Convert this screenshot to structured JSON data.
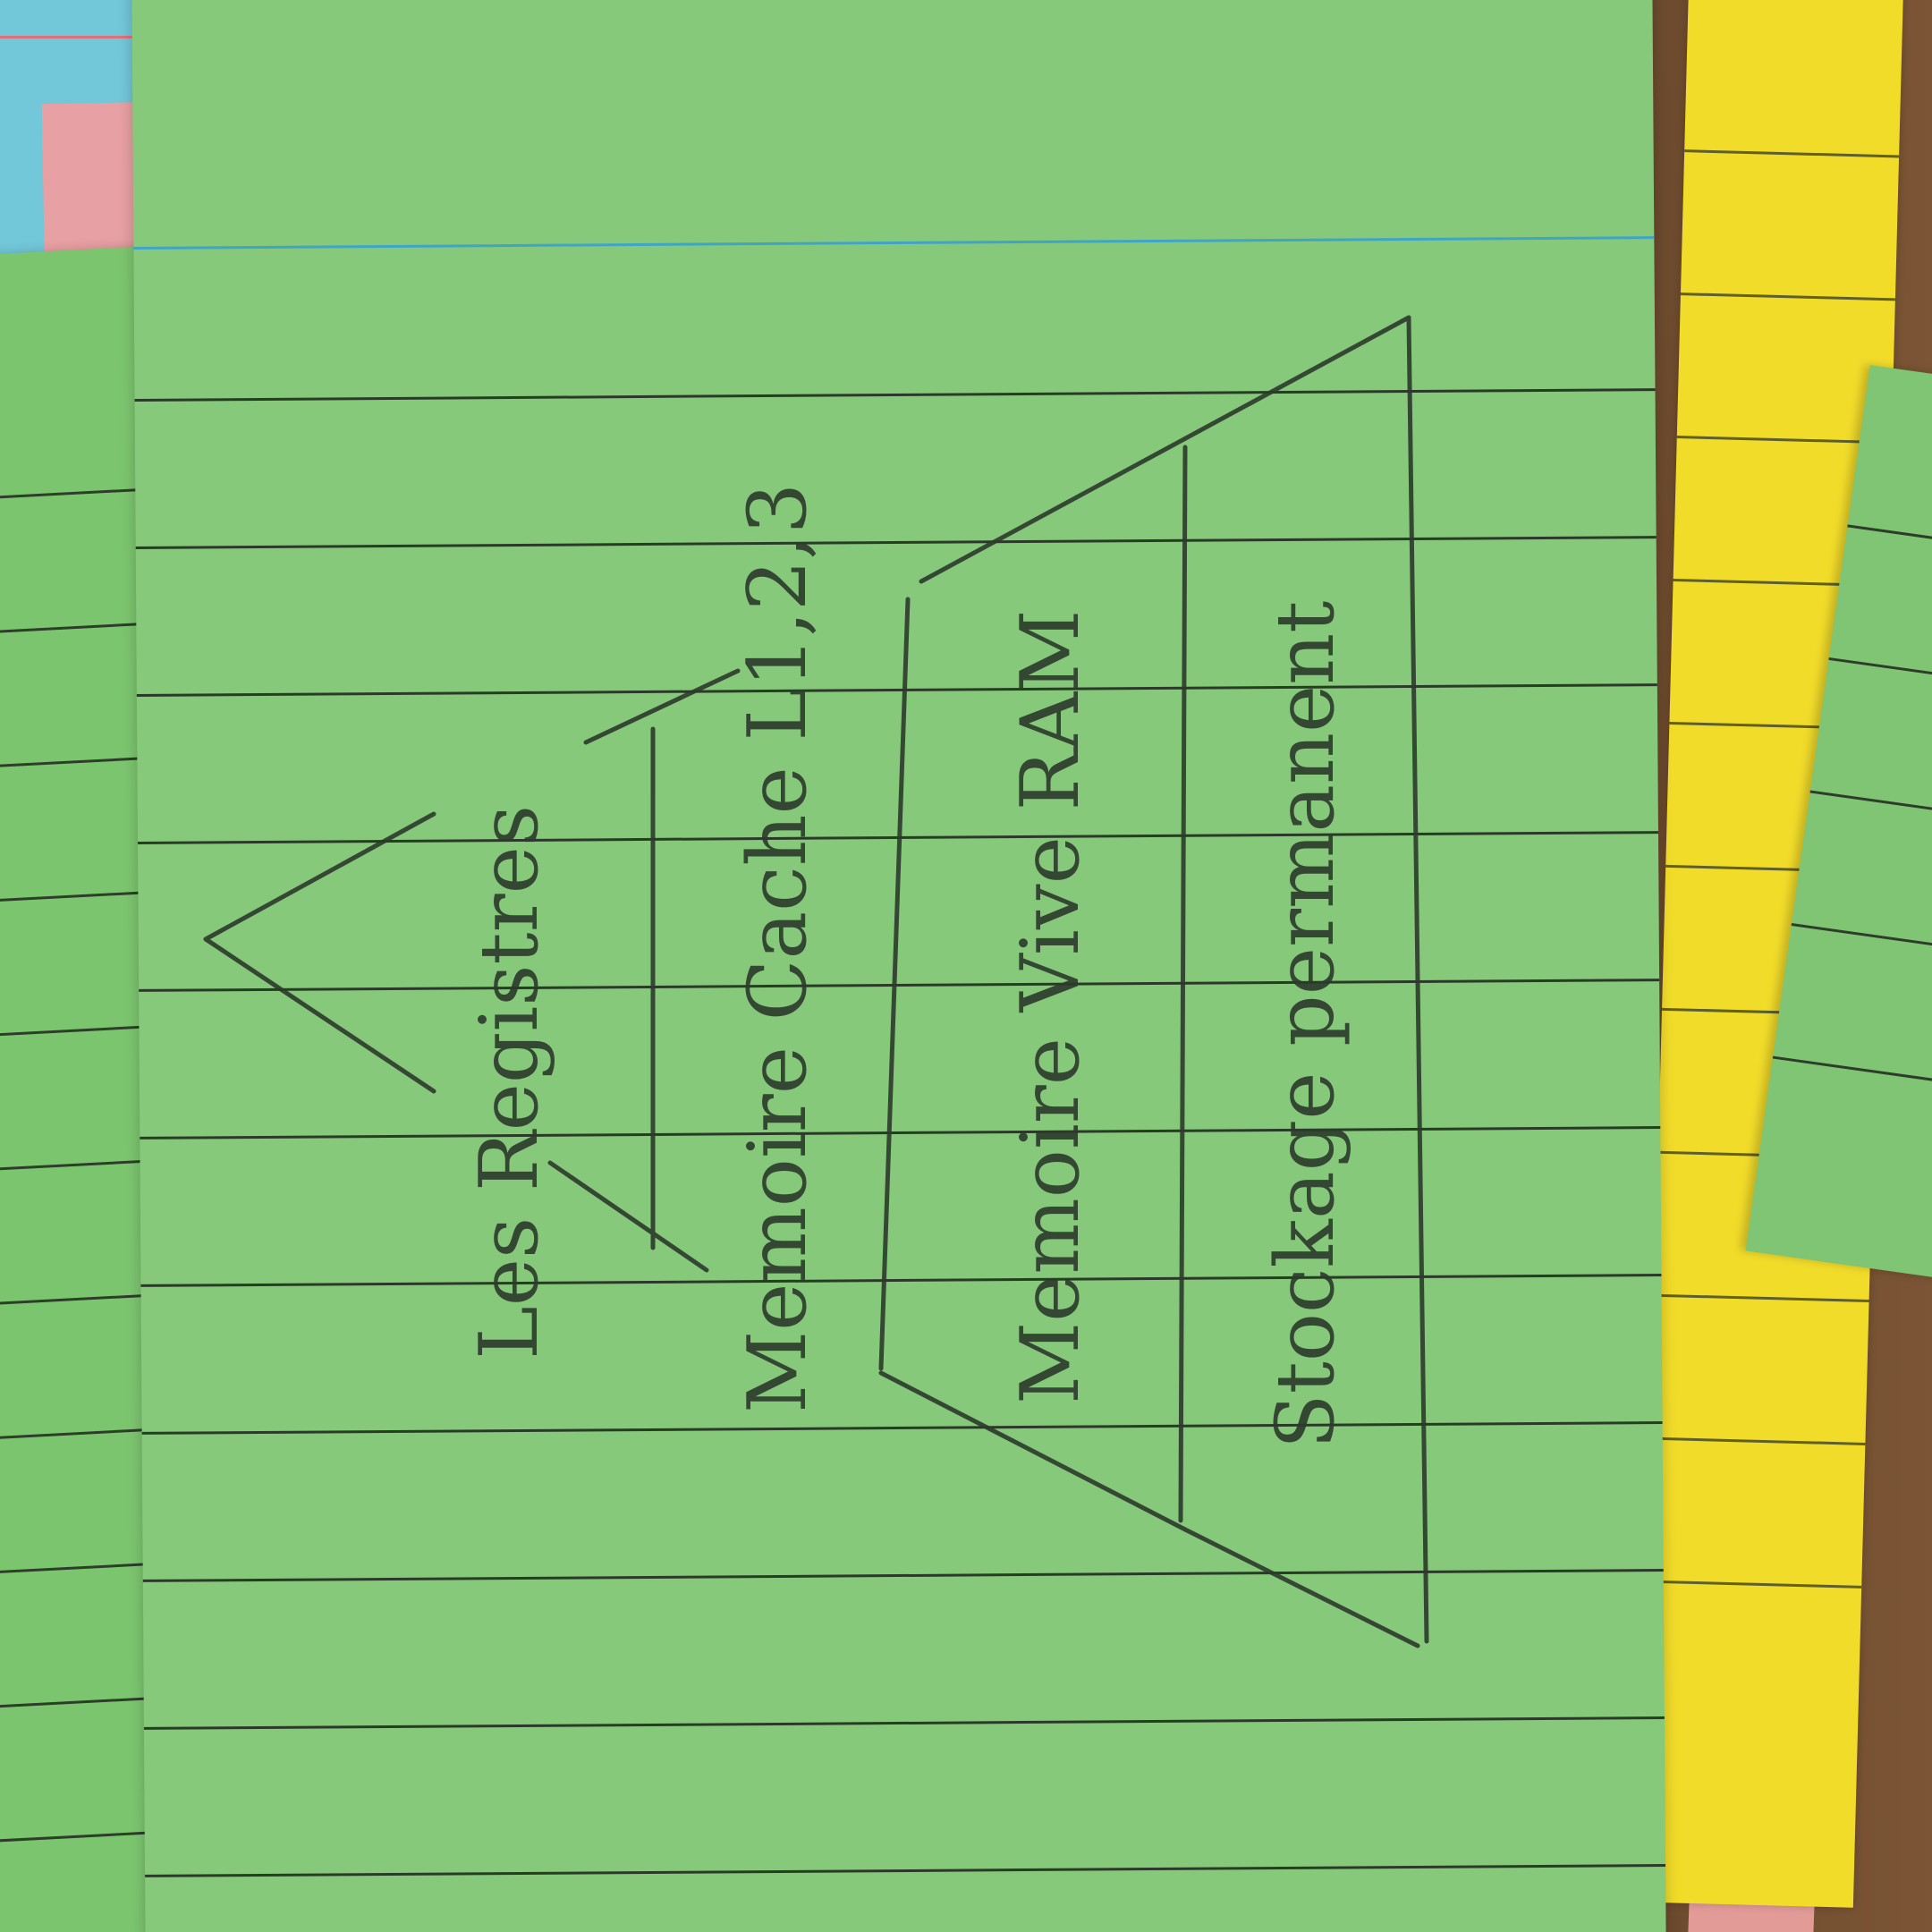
{
  "labels": {
    "registers": "Les Registres",
    "cache": "Memoire Cache L1,2,3",
    "ram": "Memoire Vive RAM",
    "storage": "Stockage permanent"
  },
  "colors": {
    "main_card": "#86c97b",
    "yellow_card": "#f2dc2a",
    "blue_card": "#72c7d8",
    "pink_card": "#e7a0a3",
    "pencil": "#2c3a2b"
  }
}
